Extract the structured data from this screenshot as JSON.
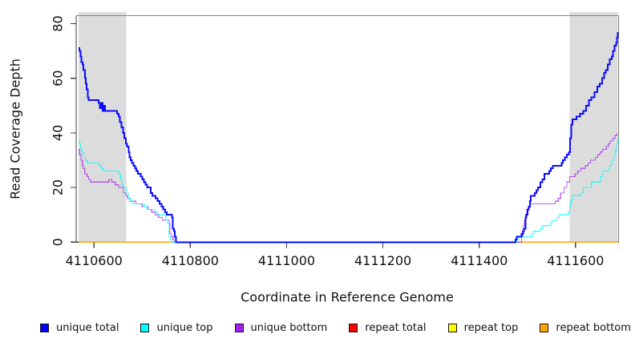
{
  "figure": {
    "x_title": "Coordinate in Reference Genome",
    "y_title": "Read Coverage Depth"
  },
  "chart_data": {
    "type": "line",
    "title": "",
    "xlabel": "Coordinate in Reference Genome",
    "ylabel": "Read Coverage Depth",
    "xlim": [
      4110563,
      4111689
    ],
    "ylim": [
      0,
      83
    ],
    "x_ticks": [
      4110600,
      4110800,
      4111000,
      4111200,
      4111400,
      4111600
    ],
    "y_ticks": [
      0,
      20,
      40,
      60,
      80
    ],
    "grid": false,
    "interpolation": "step-after",
    "shaded_regions": [
      {
        "x0": 4110568,
        "x1": 4110667,
        "color": "#DCDCDC"
      },
      {
        "x0": 4111588,
        "x1": 4111688,
        "color": "#DCDCDC"
      }
    ],
    "series": [
      {
        "name": "repeat total",
        "color": "#FF0000",
        "points": [
          [
            4110568,
            0
          ],
          [
            4111688,
            0
          ]
        ]
      },
      {
        "name": "repeat top",
        "color": "#FFFF00",
        "points": [
          [
            4110568,
            0
          ],
          [
            4111688,
            0
          ]
        ]
      },
      {
        "name": "repeat bottom",
        "color": "#FFA500",
        "points": [
          [
            4110568,
            0
          ],
          [
            4111688,
            0
          ]
        ]
      },
      {
        "name": "unique bottom",
        "color": "#A020F0",
        "points": [
          [
            4110568,
            34
          ],
          [
            4110570,
            32
          ],
          [
            4110573,
            30
          ],
          [
            4110576,
            28
          ],
          [
            4110578,
            27
          ],
          [
            4110581,
            25
          ],
          [
            4110586,
            24
          ],
          [
            4110589,
            23
          ],
          [
            4110593,
            22
          ],
          [
            4110631,
            23
          ],
          [
            4110637,
            22
          ],
          [
            4110644,
            21
          ],
          [
            4110651,
            20
          ],
          [
            4110661,
            18
          ],
          [
            4110666,
            17
          ],
          [
            4110670,
            16
          ],
          [
            4110675,
            15
          ],
          [
            4110687,
            14
          ],
          [
            4110700,
            13
          ],
          [
            4110713,
            12
          ],
          [
            4110720,
            11
          ],
          [
            4110727,
            10
          ],
          [
            4110734,
            9
          ],
          [
            4110742,
            8
          ],
          [
            4110756,
            7
          ],
          [
            4110758,
            3
          ],
          [
            4110761,
            2
          ],
          [
            4110764,
            1
          ],
          [
            4110766,
            0
          ],
          [
            4111488,
            2
          ],
          [
            4111490,
            4
          ],
          [
            4111492,
            6
          ],
          [
            4111494,
            8
          ],
          [
            4111496,
            10
          ],
          [
            4111499,
            12
          ],
          [
            4111502,
            13
          ],
          [
            4111506,
            14
          ],
          [
            4111558,
            15
          ],
          [
            4111564,
            16
          ],
          [
            4111569,
            18
          ],
          [
            4111576,
            20
          ],
          [
            4111582,
            22
          ],
          [
            4111588,
            24
          ],
          [
            4111599,
            25
          ],
          [
            4111605,
            26
          ],
          [
            4111611,
            27
          ],
          [
            4111620,
            28
          ],
          [
            4111626,
            29
          ],
          [
            4111631,
            30
          ],
          [
            4111641,
            31
          ],
          [
            4111646,
            32
          ],
          [
            4111651,
            33
          ],
          [
            4111656,
            34
          ],
          [
            4111664,
            35
          ],
          [
            4111668,
            36
          ],
          [
            4111672,
            37
          ],
          [
            4111677,
            38
          ],
          [
            4111682,
            39
          ],
          [
            4111686,
            40
          ]
        ]
      },
      {
        "name": "unique top",
        "color": "#00FFFF",
        "points": [
          [
            4110568,
            37
          ],
          [
            4110570,
            36
          ],
          [
            4110572,
            34
          ],
          [
            4110575,
            33
          ],
          [
            4110578,
            31
          ],
          [
            4110582,
            30
          ],
          [
            4110586,
            29
          ],
          [
            4110611,
            28
          ],
          [
            4110615,
            27
          ],
          [
            4110619,
            26
          ],
          [
            4110652,
            25
          ],
          [
            4110655,
            23
          ],
          [
            4110658,
            21
          ],
          [
            4110661,
            20
          ],
          [
            4110668,
            18
          ],
          [
            4110671,
            16
          ],
          [
            4110675,
            15
          ],
          [
            4110681,
            14
          ],
          [
            4110704,
            13
          ],
          [
            4110710,
            12
          ],
          [
            4110727,
            11
          ],
          [
            4110732,
            10
          ],
          [
            4110749,
            8
          ],
          [
            4110753,
            7
          ],
          [
            4110756,
            2
          ],
          [
            4110759,
            1
          ],
          [
            4110761,
            0
          ],
          [
            4111478,
            1
          ],
          [
            4111481,
            2
          ],
          [
            4111509,
            3
          ],
          [
            4111512,
            4
          ],
          [
            4111527,
            5
          ],
          [
            4111531,
            6
          ],
          [
            4111548,
            7
          ],
          [
            4111551,
            8
          ],
          [
            4111562,
            9
          ],
          [
            4111566,
            10
          ],
          [
            4111585,
            11
          ],
          [
            4111588,
            13
          ],
          [
            4111590,
            15
          ],
          [
            4111593,
            17
          ],
          [
            4111611,
            18
          ],
          [
            4111616,
            20
          ],
          [
            4111633,
            22
          ],
          [
            4111652,
            24
          ],
          [
            4111657,
            26
          ],
          [
            4111670,
            28
          ],
          [
            4111675,
            30
          ],
          [
            4111680,
            31
          ],
          [
            4111682,
            33
          ],
          [
            4111684,
            34
          ],
          [
            4111686,
            36
          ],
          [
            4111688,
            38
          ]
        ]
      },
      {
        "name": "unique total",
        "color": "#0000FF",
        "points": [
          [
            4110568,
            71
          ],
          [
            4110570,
            70
          ],
          [
            4110572,
            68
          ],
          [
            4110574,
            66
          ],
          [
            4110576,
            65
          ],
          [
            4110578,
            63
          ],
          [
            4110581,
            60
          ],
          [
            4110583,
            58
          ],
          [
            4110585,
            56
          ],
          [
            4110587,
            53
          ],
          [
            4110589,
            52
          ],
          [
            4110610,
            51
          ],
          [
            4110612,
            49
          ],
          [
            4110615,
            51
          ],
          [
            4110618,
            48
          ],
          [
            4110621,
            50
          ],
          [
            4110623,
            48
          ],
          [
            4110648,
            47
          ],
          [
            4110651,
            46
          ],
          [
            4110654,
            44
          ],
          [
            4110657,
            42
          ],
          [
            4110660,
            40
          ],
          [
            4110663,
            38
          ],
          [
            4110666,
            36
          ],
          [
            4110669,
            35
          ],
          [
            4110672,
            33
          ],
          [
            4110674,
            31
          ],
          [
            4110676,
            30
          ],
          [
            4110679,
            29
          ],
          [
            4110682,
            28
          ],
          [
            4110685,
            27
          ],
          [
            4110688,
            26
          ],
          [
            4110691,
            25
          ],
          [
            4110697,
            24
          ],
          [
            4110700,
            23
          ],
          [
            4110704,
            22
          ],
          [
            4110707,
            21
          ],
          [
            4110710,
            20
          ],
          [
            4110718,
            18
          ],
          [
            4110721,
            17
          ],
          [
            4110728,
            16
          ],
          [
            4110732,
            15
          ],
          [
            4110736,
            14
          ],
          [
            4110740,
            13
          ],
          [
            4110744,
            12
          ],
          [
            4110748,
            11
          ],
          [
            4110751,
            10
          ],
          [
            4110762,
            9
          ],
          [
            4110764,
            5
          ],
          [
            4110766,
            4
          ],
          [
            4110768,
            2
          ],
          [
            4110770,
            0
          ],
          [
            4111475,
            1
          ],
          [
            4111478,
            2
          ],
          [
            4111488,
            3
          ],
          [
            4111491,
            4
          ],
          [
            4111493,
            5
          ],
          [
            4111496,
            9
          ],
          [
            4111498,
            10
          ],
          [
            4111500,
            12
          ],
          [
            4111503,
            13
          ],
          [
            4111505,
            15
          ],
          [
            4111507,
            17
          ],
          [
            4111515,
            18
          ],
          [
            4111519,
            19
          ],
          [
            4111522,
            20
          ],
          [
            4111527,
            22
          ],
          [
            4111531,
            23
          ],
          [
            4111535,
            25
          ],
          [
            4111545,
            26
          ],
          [
            4111549,
            27
          ],
          [
            4111553,
            28
          ],
          [
            4111571,
            29
          ],
          [
            4111574,
            30
          ],
          [
            4111578,
            31
          ],
          [
            4111582,
            32
          ],
          [
            4111586,
            33
          ],
          [
            4111589,
            38
          ],
          [
            4111591,
            43
          ],
          [
            4111594,
            45
          ],
          [
            4111602,
            46
          ],
          [
            4111609,
            47
          ],
          [
            4111616,
            48
          ],
          [
            4111622,
            50
          ],
          [
            4111628,
            52
          ],
          [
            4111633,
            53
          ],
          [
            4111639,
            55
          ],
          [
            4111645,
            57
          ],
          [
            4111650,
            58
          ],
          [
            4111655,
            60
          ],
          [
            4111659,
            62
          ],
          [
            4111663,
            63
          ],
          [
            4111667,
            65
          ],
          [
            4111671,
            67
          ],
          [
            4111675,
            68
          ],
          [
            4111678,
            70
          ],
          [
            4111681,
            72
          ],
          [
            4111684,
            73
          ],
          [
            4111686,
            75
          ],
          [
            4111688,
            77
          ]
        ]
      }
    ],
    "legend": {
      "position": "bottom",
      "items": [
        {
          "label": "unique total",
          "color": "#0000FF"
        },
        {
          "label": "unique top",
          "color": "#00FFFF"
        },
        {
          "label": "unique bottom",
          "color": "#A020F0"
        },
        {
          "label": "repeat total",
          "color": "#FF0000"
        },
        {
          "label": "repeat top",
          "color": "#FFFF00"
        },
        {
          "label": "repeat bottom",
          "color": "#FFA500"
        }
      ]
    }
  }
}
